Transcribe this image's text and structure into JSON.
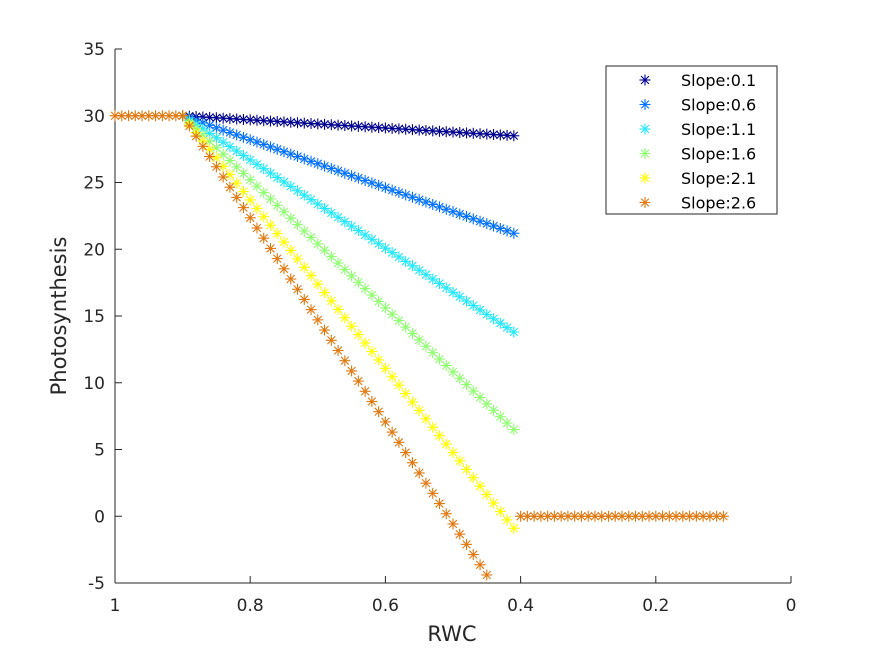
{
  "chart_data": {
    "type": "scatter",
    "xlabel": "RWC",
    "ylabel": "Photosynthesis",
    "xlim": [
      0,
      1
    ],
    "ylim": [
      -5,
      35
    ],
    "x_reversed": true,
    "xticks": [
      "1",
      "0.8",
      "0.6",
      "0.4",
      "0.2",
      "0"
    ],
    "xtick_values": [
      1,
      0.8,
      0.6,
      0.4,
      0.2,
      0
    ],
    "yticks": [
      "-5",
      "0",
      "5",
      "10",
      "15",
      "20",
      "25",
      "30",
      "35"
    ],
    "ytick_values": [
      -5,
      0,
      5,
      10,
      15,
      20,
      25,
      30,
      35
    ],
    "grid": false,
    "box": false,
    "legend_position": "top-right",
    "marker": "asterisk",
    "x_step": 0.01,
    "series": [
      {
        "name": "Slope:0.1",
        "color": "#00008f",
        "x_range": [
          0.9,
          0.41
        ],
        "y_start": 30,
        "y_end": 28.5
      },
      {
        "name": "Slope:0.6",
        "color": "#0070ff",
        "x_range": [
          0.9,
          0.41
        ],
        "y_start": 30,
        "y_end": 21.2
      },
      {
        "name": "Slope:1.1",
        "color": "#20e8ff",
        "x_range": [
          0.9,
          0.41
        ],
        "y_start": 30,
        "y_end": 13.8
      },
      {
        "name": "Slope:1.6",
        "color": "#8fff70",
        "x_range": [
          0.9,
          0.41
        ],
        "y_start": 30,
        "y_end": 6.5
      },
      {
        "name": "Slope:2.1",
        "color": "#ffff00",
        "x_range": [
          0.9,
          0.41
        ],
        "y_start": 30,
        "y_end": -0.9
      },
      {
        "name": "Slope:2.6",
        "color": "#e07810",
        "x_range": [
          0.9,
          0.45
        ],
        "y_start": 30,
        "y_end": -4.4
      }
    ],
    "plateau_high": {
      "color": "#e07810",
      "x_range": [
        1.0,
        0.9
      ],
      "y": 30
    },
    "plateau_low": {
      "color": "#e07810",
      "x_range": [
        0.4,
        0.1
      ],
      "y": 0
    }
  }
}
